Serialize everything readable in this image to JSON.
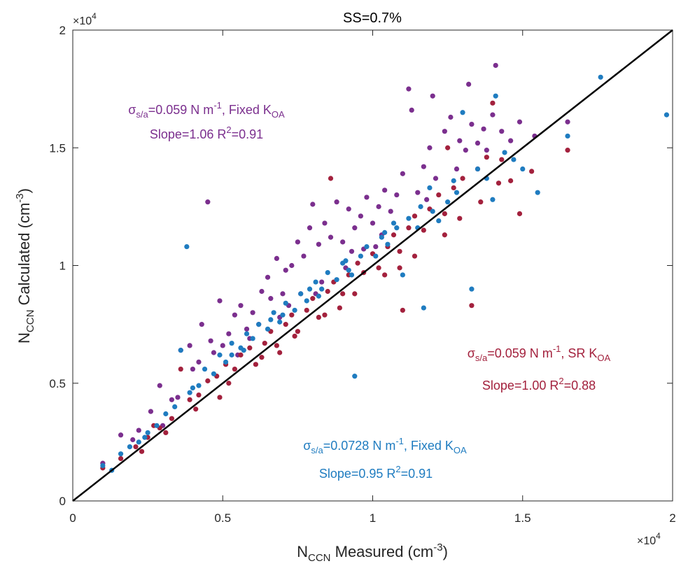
{
  "chart_data": {
    "type": "scatter",
    "title": "SS=0.7%",
    "xlabel": {
      "main": "N",
      "sub": "CCN",
      "rest": " Measured (cm",
      "sup": "-3",
      "end": ")"
    },
    "ylabel": {
      "main": "N",
      "sub": "CCN",
      "rest": " Calculated (cm",
      "sup": "-3",
      "end": ")"
    },
    "xlim": [
      0,
      20000
    ],
    "ylim": [
      0,
      20000
    ],
    "x_ticks": [
      0,
      5000,
      10000,
      15000,
      20000
    ],
    "y_ticks": [
      0,
      5000,
      10000,
      15000,
      20000
    ],
    "x_tick_labels": [
      "0",
      "0.5",
      "1",
      "1.5",
      "2"
    ],
    "y_tick_labels": [
      "0",
      "0.5",
      "1",
      "1.5",
      "2"
    ],
    "x_exponent": {
      "base": "×10",
      "exp": "4"
    },
    "y_exponent": {
      "base": "×10",
      "exp": "4"
    },
    "grid": false,
    "reference_line": {
      "from": [
        0,
        0
      ],
      "to": [
        20000,
        20000
      ],
      "color": "#000000"
    },
    "series": [
      {
        "color": "#7B2F8E",
        "annotation": {
          "line1": {
            "sigma": "σ",
            "sigma_sub": "s/a",
            "text": "=0.059 N m",
            "sup": "-1",
            "text2": ", Fixed K",
            "sub2": "OA"
          },
          "line2": {
            "text": "Slope=1.06 R",
            "sup": "2",
            "text2": "=0.91"
          }
        },
        "points": [
          [
            1000,
            1600
          ],
          [
            1600,
            2800
          ],
          [
            2200,
            3000
          ],
          [
            2600,
            3800
          ],
          [
            2900,
            4900
          ],
          [
            3300,
            4300
          ],
          [
            3600,
            6400
          ],
          [
            3900,
            6600
          ],
          [
            4200,
            5900
          ],
          [
            4300,
            7500
          ],
          [
            4600,
            6800
          ],
          [
            4900,
            8500
          ],
          [
            5200,
            7100
          ],
          [
            5400,
            7900
          ],
          [
            5600,
            8300
          ],
          [
            5800,
            7300
          ],
          [
            6000,
            8000
          ],
          [
            6300,
            8900
          ],
          [
            6500,
            9500
          ],
          [
            6600,
            8600
          ],
          [
            6800,
            10300
          ],
          [
            7000,
            8800
          ],
          [
            7100,
            9800
          ],
          [
            7300,
            10000
          ],
          [
            7500,
            11000
          ],
          [
            7700,
            10400
          ],
          [
            7900,
            11600
          ],
          [
            8000,
            12600
          ],
          [
            8200,
            10900
          ],
          [
            8400,
            11800
          ],
          [
            8600,
            11200
          ],
          [
            8800,
            12700
          ],
          [
            9000,
            11000
          ],
          [
            9200,
            12400
          ],
          [
            9400,
            11600
          ],
          [
            9600,
            12100
          ],
          [
            9800,
            12900
          ],
          [
            10000,
            11800
          ],
          [
            10200,
            12500
          ],
          [
            10400,
            13200
          ],
          [
            10600,
            12300
          ],
          [
            10800,
            13000
          ],
          [
            11000,
            13900
          ],
          [
            11200,
            17500
          ],
          [
            11300,
            16600
          ],
          [
            11500,
            13100
          ],
          [
            11700,
            14200
          ],
          [
            11900,
            15000
          ],
          [
            12100,
            13700
          ],
          [
            12400,
            15700
          ],
          [
            12600,
            16300
          ],
          [
            12900,
            15300
          ],
          [
            13100,
            14900
          ],
          [
            13300,
            16000
          ],
          [
            13500,
            15200
          ],
          [
            13700,
            15800
          ],
          [
            14000,
            16400
          ],
          [
            14100,
            18500
          ],
          [
            14300,
            15700
          ],
          [
            14600,
            15300
          ],
          [
            14900,
            16100
          ],
          [
            15400,
            15500
          ],
          [
            16500,
            16100
          ],
          [
            4000,
            5600
          ],
          [
            5000,
            6600
          ],
          [
            6200,
            7500
          ],
          [
            7200,
            8300
          ],
          [
            8300,
            9300
          ],
          [
            9300,
            10600
          ],
          [
            10300,
            11300
          ],
          [
            3000,
            3200
          ],
          [
            3500,
            4400
          ],
          [
            4700,
            6300
          ],
          [
            5900,
            6900
          ],
          [
            6900,
            7800
          ],
          [
            8100,
            8800
          ],
          [
            9100,
            9900
          ],
          [
            10100,
            10800
          ],
          [
            2000,
            2600
          ],
          [
            5500,
            6200
          ],
          [
            7600,
            8800
          ],
          [
            9700,
            10700
          ],
          [
            11800,
            12800
          ],
          [
            12800,
            14100
          ],
          [
            13800,
            14900
          ],
          [
            4500,
            12700
          ],
          [
            12000,
            17200
          ],
          [
            13200,
            17700
          ]
        ]
      },
      {
        "color": "#A3213D",
        "annotation": {
          "line1": {
            "sigma": "σ",
            "sigma_sub": "s/a",
            "text": "=0.059 N m",
            "sup": "-1",
            "text2": ", SR K",
            "sub2": "OA"
          },
          "line2": {
            "text": "Slope=1.00 R",
            "sup": "2",
            "text2": "=0.88"
          }
        },
        "points": [
          [
            1000,
            1400
          ],
          [
            1600,
            1800
          ],
          [
            2100,
            2300
          ],
          [
            2500,
            2700
          ],
          [
            2900,
            3100
          ],
          [
            3300,
            3500
          ],
          [
            3600,
            5600
          ],
          [
            3900,
            4300
          ],
          [
            4200,
            4500
          ],
          [
            4500,
            5100
          ],
          [
            4800,
            5300
          ],
          [
            5100,
            5800
          ],
          [
            5400,
            5600
          ],
          [
            5600,
            6200
          ],
          [
            5900,
            6500
          ],
          [
            6100,
            5800
          ],
          [
            6400,
            6700
          ],
          [
            6600,
            7200
          ],
          [
            6800,
            6600
          ],
          [
            7100,
            7500
          ],
          [
            7300,
            7900
          ],
          [
            7500,
            7200
          ],
          [
            7800,
            8100
          ],
          [
            8000,
            8600
          ],
          [
            8200,
            7800
          ],
          [
            8500,
            8900
          ],
          [
            8700,
            9300
          ],
          [
            9000,
            8800
          ],
          [
            9200,
            9600
          ],
          [
            9500,
            10100
          ],
          [
            9700,
            9700
          ],
          [
            10000,
            10500
          ],
          [
            10200,
            9900
          ],
          [
            10500,
            10800
          ],
          [
            10700,
            11300
          ],
          [
            10900,
            10600
          ],
          [
            11200,
            11600
          ],
          [
            11400,
            12100
          ],
          [
            11700,
            11500
          ],
          [
            11900,
            12400
          ],
          [
            12200,
            13000
          ],
          [
            12400,
            12200
          ],
          [
            12700,
            13300
          ],
          [
            13000,
            13700
          ],
          [
            13300,
            8300
          ],
          [
            13500,
            14100
          ],
          [
            13800,
            14600
          ],
          [
            14000,
            16900
          ],
          [
            14300,
            14500
          ],
          [
            14600,
            13600
          ],
          [
            14900,
            12200
          ],
          [
            15300,
            14000
          ],
          [
            16500,
            14900
          ],
          [
            3100,
            2900
          ],
          [
            4100,
            3900
          ],
          [
            5200,
            5000
          ],
          [
            6300,
            6100
          ],
          [
            7400,
            7000
          ],
          [
            8400,
            7900
          ],
          [
            9400,
            8800
          ],
          [
            10400,
            9600
          ],
          [
            11400,
            10400
          ],
          [
            12400,
            11300
          ],
          [
            2700,
            3200
          ],
          [
            4900,
            4400
          ],
          [
            6900,
            6300
          ],
          [
            8900,
            8200
          ],
          [
            10900,
            9900
          ],
          [
            12900,
            12000
          ],
          [
            13600,
            12700
          ],
          [
            14200,
            13500
          ],
          [
            12500,
            15000
          ],
          [
            8600,
            13700
          ],
          [
            11000,
            8100
          ],
          [
            2300,
            2100
          ]
        ]
      },
      {
        "color": "#1F7CC0",
        "annotation": {
          "line1": {
            "sigma": "σ",
            "sigma_sub": "s/a",
            "text": "=0.0728 N m",
            "sup": "-1",
            "text2": ", Fixed K",
            "sub2": "OA"
          },
          "line2": {
            "text": "Slope=0.95 R",
            "sup": "2",
            "text2": "=0.91"
          }
        },
        "points": [
          [
            1000,
            1500
          ],
          [
            1300,
            1300
          ],
          [
            1600,
            2000
          ],
          [
            1900,
            2300
          ],
          [
            2200,
            2500
          ],
          [
            2500,
            2900
          ],
          [
            2800,
            3200
          ],
          [
            3100,
            3700
          ],
          [
            3400,
            4000
          ],
          [
            3600,
            6400
          ],
          [
            3900,
            4600
          ],
          [
            4200,
            4900
          ],
          [
            4400,
            5600
          ],
          [
            4700,
            5400
          ],
          [
            4900,
            6200
          ],
          [
            5100,
            5900
          ],
          [
            5300,
            6700
          ],
          [
            5600,
            6500
          ],
          [
            5800,
            7100
          ],
          [
            6000,
            6900
          ],
          [
            6200,
            7500
          ],
          [
            6500,
            7300
          ],
          [
            6700,
            8000
          ],
          [
            6900,
            7600
          ],
          [
            7100,
            8400
          ],
          [
            7400,
            8100
          ],
          [
            7600,
            8800
          ],
          [
            7800,
            8500
          ],
          [
            8100,
            9300
          ],
          [
            8300,
            9000
          ],
          [
            8500,
            9700
          ],
          [
            8800,
            9400
          ],
          [
            9000,
            10100
          ],
          [
            9200,
            9800
          ],
          [
            9400,
            5300
          ],
          [
            9600,
            10400
          ],
          [
            9800,
            10800
          ],
          [
            10100,
            10400
          ],
          [
            10300,
            11200
          ],
          [
            10500,
            10900
          ],
          [
            10800,
            11600
          ],
          [
            11000,
            9600
          ],
          [
            11200,
            12000
          ],
          [
            11500,
            11600
          ],
          [
            11700,
            8200
          ],
          [
            12000,
            12300
          ],
          [
            12200,
            11900
          ],
          [
            12500,
            12700
          ],
          [
            12800,
            13100
          ],
          [
            13000,
            16500
          ],
          [
            13300,
            9000
          ],
          [
            13500,
            14100
          ],
          [
            13800,
            13700
          ],
          [
            14100,
            17200
          ],
          [
            14400,
            14800
          ],
          [
            14700,
            14500
          ],
          [
            15000,
            14100
          ],
          [
            15500,
            13100
          ],
          [
            16500,
            15500
          ],
          [
            17600,
            18000
          ],
          [
            19800,
            16400
          ],
          [
            3800,
            10800
          ],
          [
            5300,
            6200
          ],
          [
            6600,
            7700
          ],
          [
            7900,
            9000
          ],
          [
            9100,
            10200
          ],
          [
            10400,
            11400
          ],
          [
            11600,
            12500
          ],
          [
            12700,
            13600
          ],
          [
            2400,
            2700
          ],
          [
            4000,
            4800
          ],
          [
            5700,
            6400
          ],
          [
            7000,
            7900
          ],
          [
            8200,
            8700
          ],
          [
            9300,
            9600
          ],
          [
            10700,
            11800
          ],
          [
            11900,
            13300
          ],
          [
            14000,
            12800
          ]
        ]
      }
    ]
  }
}
